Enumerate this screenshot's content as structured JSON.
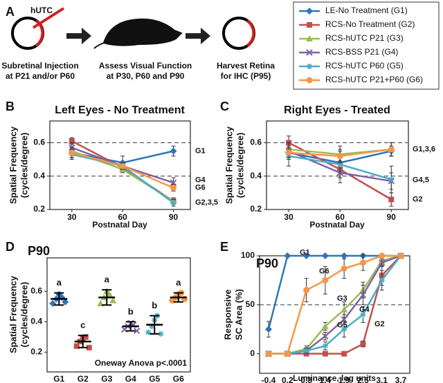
{
  "schematic": {
    "panel": "A",
    "syringe_label": "hUTC",
    "steps": [
      {
        "lines": [
          "Subretinal Injection",
          "at P21 and/or P60"
        ]
      },
      {
        "lines": [
          "Assess Visual Function",
          "at P30, P60 and P90"
        ]
      },
      {
        "lines": [
          "Harvest Retina",
          "for IHC (P95)"
        ]
      }
    ]
  },
  "chart_data": [
    {
      "type": "line",
      "panel": "B",
      "title": "Left Eyes - No Treatment",
      "ylabel": [
        "Spatial Frequency",
        "(cycles/degree)"
      ],
      "xlabel": "Postnatal Day",
      "x": [
        30,
        60,
        90
      ],
      "xlim": [
        17,
        100
      ],
      "xticks": [
        30,
        60,
        90
      ],
      "ylim": [
        0.2,
        0.73
      ],
      "yticks": [
        0.2,
        0.4,
        0.6
      ],
      "reflines": [
        0.4,
        0.6
      ],
      "series": [
        {
          "name": "LE-No Treatment (G1)",
          "color": "#2e75b6",
          "marker": "diamond",
          "values": [
            0.54,
            0.48,
            0.55
          ],
          "errors": [
            0.03,
            0.04,
            0.03
          ]
        },
        {
          "name": "RCS-No Treatment (G2)",
          "color": "#c0504d",
          "marker": "square",
          "values": [
            0.61,
            0.45,
            0.25
          ],
          "errors": [
            0.02,
            0.02,
            0.02
          ]
        },
        {
          "name": "RCS-hUTC P21 (G3)",
          "color": "#9bbb59",
          "marker": "triangle",
          "values": [
            0.55,
            0.44,
            0.25
          ],
          "errors": [
            0.02,
            0.02,
            0.02
          ]
        },
        {
          "name": "RCS-BSS P21 (G4)",
          "color": "#8064a2",
          "marker": "x",
          "values": [
            0.57,
            0.46,
            0.36
          ],
          "errors": [
            0.03,
            0.02,
            0.03
          ]
        },
        {
          "name": "RCS-hUTC P60 (G5)",
          "color": "#4bacc6",
          "marker": "asterisk",
          "values": [
            0.53,
            0.46,
            0.24
          ],
          "errors": [
            0.03,
            0.02,
            0.02
          ]
        },
        {
          "name": "RCS-hUTC P21+P60 (G6)",
          "color": "#f79646",
          "marker": "circle",
          "values": [
            0.54,
            0.46,
            0.33
          ],
          "errors": [
            0.03,
            0.02,
            0.02
          ]
        }
      ],
      "annotations": [
        {
          "text": "G1"
        },
        {
          "text": "G4"
        },
        {
          "text": "G6"
        },
        {
          "text": "G2,3,5"
        }
      ]
    },
    {
      "type": "line",
      "panel": "C",
      "title": "Right Eyes - Treated",
      "ylabel": [
        "Spatial Frequency",
        "(cycles/degree)"
      ],
      "xlabel": "Postnatal Day",
      "x": [
        30,
        60,
        90
      ],
      "xlim": [
        17,
        100
      ],
      "xticks": [
        30,
        60,
        90
      ],
      "ylim": [
        0.2,
        0.73
      ],
      "yticks": [
        0.2,
        0.4,
        0.6
      ],
      "reflines": [
        0.4,
        0.6
      ],
      "series": [
        {
          "color": "#2e75b6",
          "marker": "diamond",
          "values": [
            0.54,
            0.48,
            0.55
          ],
          "errors": [
            0.03,
            0.04,
            0.03
          ]
        },
        {
          "color": "#c0504d",
          "marker": "square",
          "values": [
            0.6,
            0.44,
            0.26
          ],
          "errors": [
            0.04,
            0.05,
            0.04
          ]
        },
        {
          "color": "#9bbb59",
          "marker": "triangle",
          "values": [
            0.56,
            0.53,
            0.56
          ],
          "errors": [
            0.04,
            0.05,
            0.04
          ]
        },
        {
          "color": "#8064a2",
          "marker": "x",
          "values": [
            0.55,
            0.42,
            0.37
          ],
          "errors": [
            0.05,
            0.06,
            0.05
          ]
        },
        {
          "color": "#4bacc6",
          "marker": "asterisk",
          "values": [
            0.52,
            0.47,
            0.38
          ],
          "errors": [
            0.06,
            0.08,
            0.08
          ]
        },
        {
          "color": "#f79646",
          "marker": "circle",
          "values": [
            0.54,
            0.52,
            0.56
          ],
          "errors": [
            0.03,
            0.04,
            0.04
          ]
        }
      ],
      "annotations": [
        {
          "text": "G1,3,6"
        },
        {
          "text": "G4,5"
        },
        {
          "text": "G2"
        }
      ]
    },
    {
      "type": "dot",
      "panel": "D",
      "title": "P90",
      "ylabel": [
        "Spatial Frequency",
        "(cycles/degree)"
      ],
      "categories": [
        "G1",
        "G2",
        "G3",
        "G4",
        "G5",
        "G6"
      ],
      "ylim": [
        0.07,
        0.82
      ],
      "yticks": [
        0.2,
        0.4,
        0.6
      ],
      "values": [
        0.55,
        0.27,
        0.56,
        0.37,
        0.38,
        0.56
      ],
      "errors": [
        0.04,
        0.04,
        0.05,
        0.03,
        0.06,
        0.03
      ],
      "letters": [
        "a",
        "c",
        "a",
        "b",
        "b",
        "a"
      ],
      "colors": [
        "#2e75b6",
        "#c0504d",
        "#9bbb59",
        "#8064a2",
        "#4bacc6",
        "#f79646"
      ],
      "markers": [
        "diamond",
        "square",
        "triangle",
        "x",
        "asterisk",
        "circle"
      ],
      "points": [
        [
          0.52,
          0.55,
          0.58,
          0.56,
          0.53
        ],
        [
          0.24,
          0.27,
          0.29,
          0.3,
          0.23
        ],
        [
          0.52,
          0.56,
          0.6,
          0.58,
          0.54
        ],
        [
          0.35,
          0.37,
          0.39,
          0.38,
          0.34
        ],
        [
          0.33,
          0.37,
          0.41,
          0.44,
          0.32
        ],
        [
          0.54,
          0.56,
          0.58,
          0.59,
          0.55
        ]
      ],
      "annotation": "Oneway Anova p<.0001"
    },
    {
      "type": "line",
      "panel": "E",
      "title": "P90",
      "ylabel": [
        "Responsive",
        "SC Area (%)"
      ],
      "xlabel": "Luminance, log units",
      "categories": [
        "-0.4",
        "0.2",
        "0.8",
        "1.4",
        "1.9",
        "2.5",
        "3.1",
        "3.7"
      ],
      "ylim": [
        -20,
        100
      ],
      "yticks": [
        0,
        50,
        100
      ],
      "reflines": [
        50
      ],
      "series": [
        {
          "color": "#2e75b6",
          "marker": "diamond",
          "values": [
            25,
            100,
            100,
            100,
            100,
            100,
            100,
            100
          ],
          "errors": [
            8,
            0,
            0,
            0,
            0,
            0,
            0,
            0
          ]
        },
        {
          "color": "#c0504d",
          "marker": "square",
          "values": [
            0,
            0,
            0,
            0,
            0,
            10,
            80,
            100
          ],
          "errors": [
            0,
            0,
            0,
            0,
            0,
            3,
            10,
            0
          ]
        },
        {
          "color": "#9bbb59",
          "marker": "triangle",
          "values": [
            0,
            0,
            5,
            28,
            45,
            65,
            95,
            100
          ],
          "errors": [
            0,
            0,
            3,
            4,
            8,
            8,
            5,
            0
          ]
        },
        {
          "color": "#8064a2",
          "marker": "x",
          "values": [
            0,
            0,
            3,
            18,
            35,
            60,
            93,
            100
          ],
          "errors": [
            0,
            0,
            3,
            4,
            5,
            10,
            4,
            0
          ]
        },
        {
          "color": "#4bacc6",
          "marker": "asterisk",
          "values": [
            0,
            0,
            3,
            8,
            25,
            40,
            75,
            100
          ],
          "errors": [
            0,
            0,
            2,
            4,
            8,
            8,
            10,
            0
          ]
        },
        {
          "color": "#f79646",
          "marker": "circle",
          "values": [
            0,
            0,
            65,
            75,
            87,
            93,
            100,
            100
          ],
          "errors": [
            0,
            0,
            12,
            14,
            10,
            8,
            0,
            0
          ]
        }
      ],
      "annotations": [
        {
          "text": "G1",
          "color": "#2e75b6"
        },
        {
          "text": "G6",
          "color": "#f79646"
        },
        {
          "text": "G3",
          "color": "#9bbb59"
        },
        {
          "text": "G4",
          "color": "#8064a2"
        },
        {
          "text": "G5",
          "color": "#4bacc6"
        },
        {
          "text": "G2",
          "color": "#c0504d"
        }
      ]
    }
  ]
}
